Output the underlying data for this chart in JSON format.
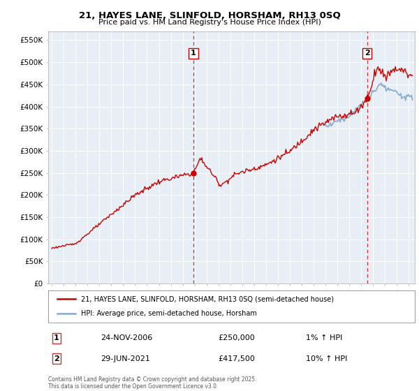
{
  "title": "21, HAYES LANE, SLINFOLD, HORSHAM, RH13 0SQ",
  "subtitle": "Price paid vs. HM Land Registry's House Price Index (HPI)",
  "red_line_color": "#cc0000",
  "blue_line_color": "#88aacc",
  "dashed_line_color": "#cc0000",
  "background_color": "#ffffff",
  "grid_color": "#cccccc",
  "ylim": [
    0,
    570000
  ],
  "yticks": [
    0,
    50000,
    100000,
    150000,
    200000,
    250000,
    300000,
    350000,
    400000,
    450000,
    500000,
    550000
  ],
  "ytick_labels": [
    "£0",
    "£50K",
    "£100K",
    "£150K",
    "£200K",
    "£250K",
    "£300K",
    "£350K",
    "£400K",
    "£450K",
    "£500K",
    "£550K"
  ],
  "sale1_year": 2006.9,
  "sale1_price": 250000,
  "sale1_label": "1",
  "sale1_date": "24-NOV-2006",
  "sale1_price_str": "£250,000",
  "sale1_hpi": "1% ↑ HPI",
  "sale2_year": 2021.5,
  "sale2_price": 417500,
  "sale2_label": "2",
  "sale2_date": "29-JUN-2021",
  "sale2_price_str": "£417,500",
  "sale2_hpi": "10% ↑ HPI",
  "legend_line1": "21, HAYES LANE, SLINFOLD, HORSHAM, RH13 0SQ (semi-detached house)",
  "legend_line2": "HPI: Average price, semi-detached house, Horsham",
  "footer": "Contains HM Land Registry data © Crown copyright and database right 2025.\nThis data is licensed under the Open Government Licence v3.0.",
  "xmin": 1994.7,
  "xmax": 2025.5
}
